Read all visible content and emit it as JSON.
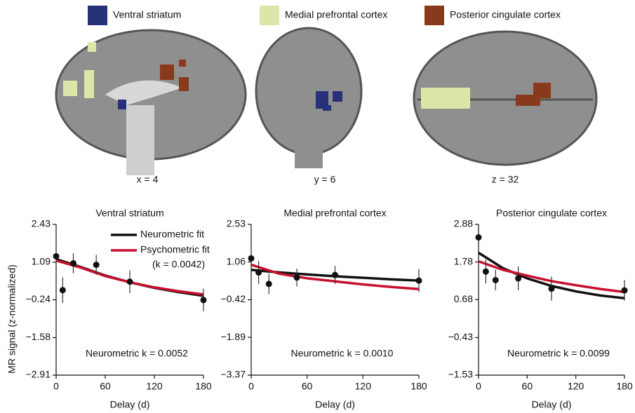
{
  "brain_legend": [
    {
      "label": "Ventral striatum",
      "color": "#27317a"
    },
    {
      "label": "Medial prefrontal cortex",
      "color": "#dde6a8"
    },
    {
      "label": "Posterior cingulate cortex",
      "color": "#8a3a1c"
    }
  ],
  "slices": [
    {
      "label": "x = 4"
    },
    {
      "label": "y = 6"
    },
    {
      "label": "z = 32"
    }
  ],
  "ylabel": "MR signal (z-normalized)",
  "chart_data": [
    {
      "type": "line",
      "title": "Ventral striatum",
      "xlabel": "Delay (d)",
      "xlim": [
        0,
        180
      ],
      "xticks": [
        0,
        60,
        120,
        180
      ],
      "ylim": [
        -2.91,
        2.43
      ],
      "yticks": [
        {
          "value": -2.91,
          "label": "−2.91"
        },
        {
          "value": -1.58,
          "label": "−1.58"
        },
        {
          "value": -0.24,
          "label": "−0.24"
        },
        1.09,
        2.43
      ],
      "points": {
        "x": [
          0,
          8,
          21,
          49,
          90,
          180
        ],
        "values": [
          1.3,
          0.1,
          1.05,
          1.0,
          0.4,
          -0.25
        ],
        "errors": [
          0.4,
          0.45,
          0.35,
          0.35,
          0.4,
          0.4
        ]
      },
      "series": [
        {
          "name": "Neurometric fit",
          "color": "#111111",
          "x": [
            0,
            30,
            60,
            90,
            120,
            150,
            180
          ],
          "values": [
            1.2,
            0.92,
            0.62,
            0.38,
            0.18,
            0.03,
            -0.1
          ]
        },
        {
          "name": "Psychometric fit",
          "color": "#c8102e",
          "x": [
            0,
            30,
            60,
            90,
            120,
            150,
            180
          ],
          "values": [
            1.15,
            0.9,
            0.6,
            0.38,
            0.2,
            0.06,
            -0.05
          ]
        }
      ],
      "legend_note": "(k = 0.0042)",
      "annotation": "Neurometric k = 0.0052"
    },
    {
      "type": "line",
      "title": "Medial prefrontal cortex",
      "xlabel": "Delay (d)",
      "xlim": [
        0,
        180
      ],
      "xticks": [
        0,
        60,
        120,
        180
      ],
      "ylim": [
        -3.37,
        2.53
      ],
      "yticks": [
        {
          "value": -3.37,
          "label": "−3.37"
        },
        {
          "value": -1.89,
          "label": "−1.89"
        },
        {
          "value": -0.42,
          "label": "−0.42"
        },
        1.06,
        2.53
      ],
      "points": {
        "x": [
          0,
          8,
          19,
          49,
          90,
          180
        ],
        "values": [
          1.2,
          0.65,
          0.2,
          0.45,
          0.55,
          0.33
        ],
        "errors": [
          0.45,
          0.45,
          0.4,
          0.35,
          0.35,
          0.45
        ]
      },
      "series": [
        {
          "color": "#111111",
          "x": [
            0,
            30,
            60,
            90,
            120,
            150,
            180
          ],
          "values": [
            0.75,
            0.65,
            0.57,
            0.5,
            0.44,
            0.38,
            0.33
          ]
        },
        {
          "color": "#c8102e",
          "x": [
            0,
            30,
            60,
            90,
            120,
            150,
            180
          ],
          "values": [
            0.95,
            0.6,
            0.42,
            0.3,
            0.18,
            0.08,
            0.0
          ]
        }
      ],
      "annotation": "Neurometric k = 0.0010"
    },
    {
      "type": "line",
      "title": "Posterior cingulate cortex",
      "xlabel": "Delay (d)",
      "xlim": [
        0,
        180
      ],
      "xticks": [
        0,
        60,
        120,
        180
      ],
      "ylim": [
        -1.53,
        2.88
      ],
      "yticks": [
        {
          "value": -1.53,
          "label": "−1.53"
        },
        {
          "value": -0.43,
          "label": "−0.43"
        },
        0.68,
        1.78,
        2.88
      ],
      "points": {
        "x": [
          0,
          9,
          21,
          49,
          90,
          180
        ],
        "values": [
          2.5,
          1.5,
          1.25,
          1.3,
          1.0,
          0.95
        ],
        "errors": [
          0.35,
          0.35,
          0.3,
          0.35,
          0.35,
          0.3
        ]
      },
      "series": [
        {
          "color": "#111111",
          "x": [
            0,
            30,
            60,
            90,
            120,
            150,
            180
          ],
          "values": [
            2.05,
            1.6,
            1.3,
            1.08,
            0.92,
            0.8,
            0.72
          ]
        },
        {
          "color": "#c8102e",
          "x": [
            0,
            30,
            60,
            90,
            120,
            150,
            180
          ],
          "values": [
            1.8,
            1.55,
            1.38,
            1.22,
            1.1,
            0.99,
            0.9
          ]
        }
      ],
      "annotation": "Neurometric k = 0.0099"
    }
  ]
}
